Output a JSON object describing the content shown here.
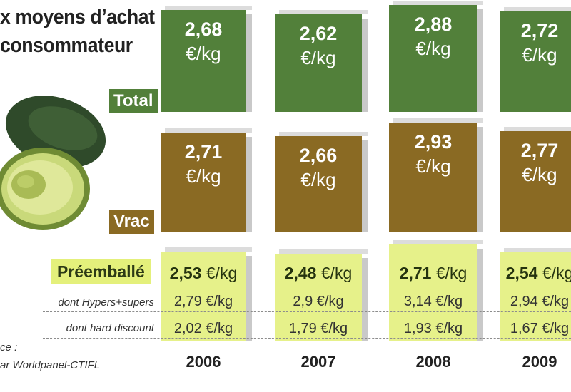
{
  "title_lines": [
    "x moyens d’achat",
    "consommateur"
  ],
  "row_labels": {
    "total": "Total",
    "vrac": "Vrac",
    "preemballe": "Préemballé",
    "hypers": "dont Hypers+supers",
    "hard_discount": "dont hard discount"
  },
  "unit": "€/kg",
  "source_lines": [
    "ce :",
    "ar Worldpanel-CTIFL"
  ],
  "colors": {
    "total": "#52803a",
    "vrac": "#8a6a23",
    "preemballe": "#e6f18a"
  },
  "chart_data": {
    "type": "table",
    "categories": [
      "2006",
      "2007",
      "2008",
      "2009"
    ],
    "series": [
      {
        "name": "Total",
        "values": [
          "2,68",
          "2,62",
          "2,88",
          "2,72"
        ]
      },
      {
        "name": "Vrac",
        "values": [
          "2,71",
          "2,66",
          "2,93",
          "2,77"
        ]
      },
      {
        "name": "Préemballé",
        "values": [
          "2,53",
          "2,48",
          "2,71",
          "2,54"
        ]
      },
      {
        "name": "dont Hypers+supers",
        "values": [
          "2,79",
          "2,9",
          "3,14",
          "2,94"
        ]
      },
      {
        "name": "dont hard discount",
        "values": [
          "2,02",
          "1,79",
          "1,93",
          "1,67"
        ]
      }
    ]
  }
}
